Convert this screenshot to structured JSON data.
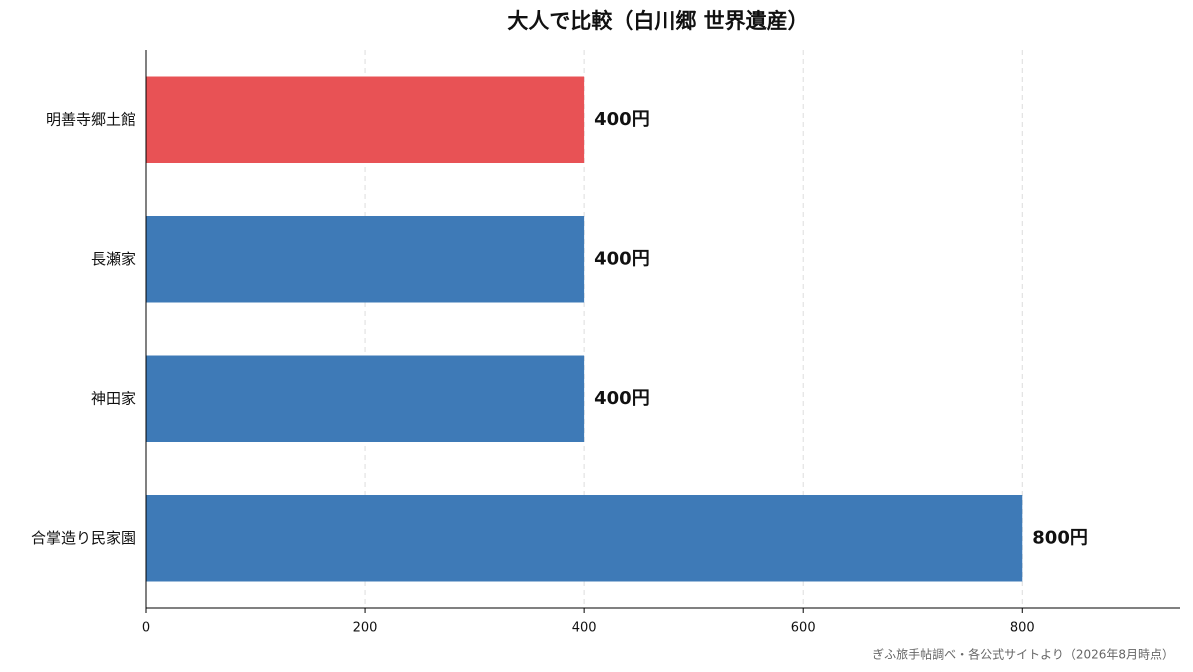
{
  "chart_data": {
    "type": "barh",
    "title": "大人で比較（白川郷 世界遺産）",
    "categories": [
      "明善寺郷土館",
      "長瀬家",
      "神田家",
      "合掌造り民家園"
    ],
    "values": [
      400,
      400,
      400,
      800
    ],
    "value_labels": [
      "400円",
      "400円",
      "400円",
      "800円"
    ],
    "colors": [
      "#e85255",
      "#3e7ab7",
      "#3e7ab7",
      "#3e7ab7"
    ],
    "xlim": [
      0,
      944
    ],
    "xticks": [
      0,
      200,
      400,
      600,
      800
    ],
    "grid": true,
    "source": "ぎふ旅手帖調べ・各公式サイトより（2026年8月時点）"
  }
}
